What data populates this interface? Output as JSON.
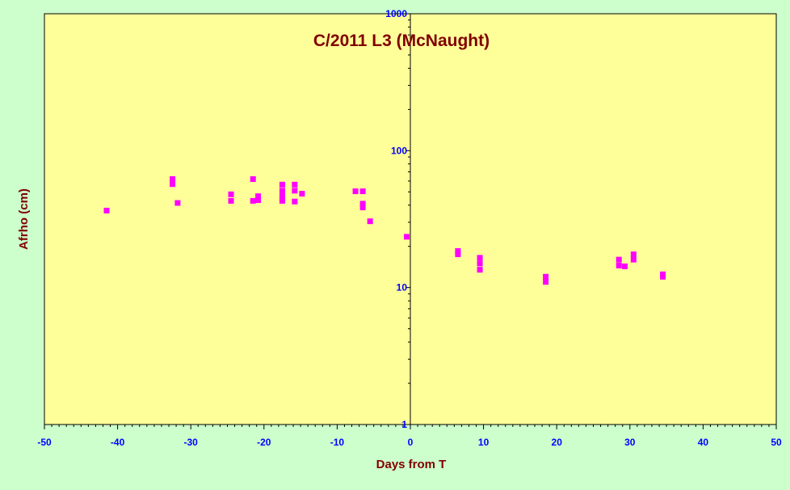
{
  "chart_data": {
    "type": "scatter",
    "title": "C/2011 L3 (McNaught)",
    "xlabel": "Days from T",
    "ylabel": "Afrho (cm)",
    "x_scale": "linear",
    "y_scale": "log",
    "xlim": [
      -50,
      50
    ],
    "ylim": [
      1,
      1000
    ],
    "x_ticks": [
      -50,
      -40,
      -30,
      -20,
      -10,
      0,
      10,
      20,
      30,
      40,
      50
    ],
    "y_ticks": [
      1,
      10,
      100,
      1000
    ],
    "x_tick_labels": [
      "-50",
      "-40",
      "-30",
      "-20",
      "-10",
      "0",
      "10",
      "20",
      "30",
      "40",
      "50"
    ],
    "y_tick_labels": [
      "1",
      "10",
      "100",
      "1000"
    ],
    "grid": false,
    "legend": "none",
    "series": [
      {
        "color": "#ff00ff",
        "marker": "square",
        "points": [
          [
            -41.5,
            36.5
          ],
          [
            -32.5,
            62
          ],
          [
            -32.5,
            57
          ],
          [
            -31.8,
            41.5
          ],
          [
            -24.5,
            48
          ],
          [
            -24.5,
            43
          ],
          [
            -21.5,
            62
          ],
          [
            -21.5,
            43
          ],
          [
            -20.8,
            46.5
          ],
          [
            -20.8,
            43.5
          ],
          [
            -17.5,
            56.5
          ],
          [
            -17.5,
            51
          ],
          [
            -17.5,
            46.5
          ],
          [
            -17.5,
            44.5
          ],
          [
            -17.5,
            43
          ],
          [
            -15.8,
            56.5
          ],
          [
            -15.8,
            51
          ],
          [
            -15.8,
            42.5
          ],
          [
            -14.8,
            48.5
          ],
          [
            -7.5,
            50.5
          ],
          [
            -6.5,
            50.5
          ],
          [
            -6.5,
            41
          ],
          [
            -6.5,
            38.5
          ],
          [
            -5.5,
            30.5
          ],
          [
            -0.5,
            23.5
          ],
          [
            6.5,
            18.5
          ],
          [
            6.5,
            17.5
          ],
          [
            9.5,
            16.5
          ],
          [
            9.5,
            15
          ],
          [
            9.5,
            13.5
          ],
          [
            18.5,
            12
          ],
          [
            18.5,
            11
          ],
          [
            28.5,
            16
          ],
          [
            28.5,
            14.5
          ],
          [
            29.3,
            14.3
          ],
          [
            30.5,
            17.5
          ],
          [
            30.5,
            16
          ],
          [
            34.5,
            12.5
          ],
          [
            34.5,
            12
          ]
        ]
      }
    ],
    "colors": {
      "background": "#ccffcc",
      "plot_area": "#ffff99",
      "title": "#800000",
      "axis_title": "#800000",
      "tick_labels": "#0000ff"
    }
  }
}
